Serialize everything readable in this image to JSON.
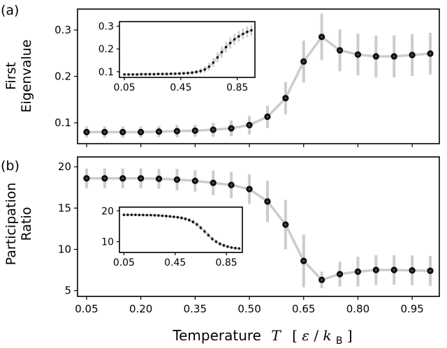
{
  "chart_data": [
    {
      "id": "top",
      "type": "line",
      "panel_tag": "(a)",
      "ylabel_lines": [
        "First",
        "Eigenvalue"
      ],
      "xlim": [
        0.025,
        1.025
      ],
      "ylim": [
        0.055,
        0.345
      ],
      "yticks": [
        0.1,
        0.2,
        0.3
      ],
      "ytick_labels": [
        "0.1",
        "0.2",
        "0.3"
      ],
      "x": [
        0.05,
        0.1,
        0.15,
        0.2,
        0.25,
        0.3,
        0.35,
        0.4,
        0.45,
        0.5,
        0.55,
        0.6,
        0.65,
        0.7,
        0.75,
        0.8,
        0.85,
        0.9,
        0.95,
        1.0
      ],
      "y": [
        0.08,
        0.08,
        0.08,
        0.08,
        0.081,
        0.082,
        0.083,
        0.085,
        0.088,
        0.095,
        0.113,
        0.153,
        0.232,
        0.285,
        0.256,
        0.247,
        0.243,
        0.243,
        0.246,
        0.249
      ],
      "yerr": [
        0.012,
        0.012,
        0.012,
        0.012,
        0.012,
        0.013,
        0.013,
        0.015,
        0.017,
        0.02,
        0.024,
        0.035,
        0.045,
        0.05,
        0.045,
        0.045,
        0.045,
        0.045,
        0.045,
        0.045
      ],
      "inset": {
        "xlim": [
          0.015,
          0.975
        ],
        "ylim": [
          0.075,
          0.32
        ],
        "xticks": [
          0.05,
          0.45,
          0.85
        ],
        "xtick_labels": [
          "0.05",
          "0.45",
          "0.85"
        ],
        "yticks": [
          0.1,
          0.2,
          0.3
        ],
        "ytick_labels": [
          "0.1",
          "0.2",
          "0.3"
        ],
        "x": [
          0.05,
          0.08,
          0.11,
          0.14,
          0.17,
          0.2,
          0.23,
          0.26,
          0.29,
          0.32,
          0.35,
          0.38,
          0.41,
          0.44,
          0.47,
          0.5,
          0.53,
          0.56,
          0.59,
          0.62,
          0.65,
          0.68,
          0.71,
          0.74,
          0.77,
          0.8,
          0.83,
          0.86,
          0.89,
          0.92,
          0.95
        ],
        "y": [
          0.088,
          0.088,
          0.088,
          0.088,
          0.089,
          0.089,
          0.089,
          0.089,
          0.09,
          0.09,
          0.09,
          0.091,
          0.091,
          0.092,
          0.093,
          0.094,
          0.096,
          0.099,
          0.103,
          0.11,
          0.122,
          0.14,
          0.163,
          0.186,
          0.208,
          0.226,
          0.242,
          0.255,
          0.266,
          0.275,
          0.282
        ],
        "yerr": [
          0.006,
          0.006,
          0.006,
          0.006,
          0.006,
          0.006,
          0.006,
          0.006,
          0.006,
          0.006,
          0.007,
          0.007,
          0.007,
          0.007,
          0.008,
          0.008,
          0.009,
          0.01,
          0.012,
          0.014,
          0.017,
          0.02,
          0.022,
          0.024,
          0.024,
          0.024,
          0.024,
          0.024,
          0.024,
          0.024,
          0.024
        ]
      }
    },
    {
      "id": "bottom",
      "type": "line",
      "panel_tag": "(b)",
      "ylabel_lines": [
        "Participation",
        "Ratio"
      ],
      "xlabel": "Temperature",
      "xlabel_symbol": "T",
      "xlabel_unit_open": "[",
      "xlabel_unit_eps": "ε",
      "xlabel_unit_slash": "/",
      "xlabel_unit_k": "k",
      "xlabel_unit_sub": "B",
      "xlabel_unit_close": "]",
      "xlim": [
        0.025,
        1.025
      ],
      "ylim": [
        4.3,
        21.2
      ],
      "xticks": [
        0.05,
        0.2,
        0.35,
        0.5,
        0.65,
        0.8,
        0.95
      ],
      "xtick_labels": [
        "0.05",
        "0.20",
        "0.35",
        "0.50",
        "0.65",
        "0.80",
        "0.95"
      ],
      "yticks": [
        5,
        10,
        15,
        20
      ],
      "ytick_labels": [
        "5",
        "10",
        "15",
        "20"
      ],
      "x": [
        0.05,
        0.1,
        0.15,
        0.2,
        0.25,
        0.3,
        0.35,
        0.4,
        0.45,
        0.5,
        0.55,
        0.6,
        0.65,
        0.7,
        0.75,
        0.8,
        0.85,
        0.9,
        0.95,
        1.0
      ],
      "y": [
        18.6,
        18.6,
        18.6,
        18.6,
        18.55,
        18.45,
        18.3,
        18.05,
        17.8,
        17.3,
        15.8,
        13.0,
        8.6,
        6.3,
        7.0,
        7.3,
        7.5,
        7.5,
        7.45,
        7.4
      ],
      "yerr": [
        1.2,
        1.2,
        1.2,
        1.2,
        1.2,
        1.3,
        1.3,
        1.5,
        1.6,
        1.8,
        2.5,
        3.0,
        3.2,
        1.0,
        1.5,
        1.8,
        1.8,
        1.8,
        1.8,
        1.8
      ],
      "inset": {
        "xlim": [
          0.015,
          0.975
        ],
        "ylim": [
          6.5,
          21.2
        ],
        "xticks": [
          0.05,
          0.45,
          0.85
        ],
        "xtick_labels": [
          "0.05",
          "0.45",
          "0.85"
        ],
        "yticks": [
          10,
          20
        ],
        "ytick_labels": [
          "10",
          "20"
        ],
        "x": [
          0.05,
          0.08,
          0.11,
          0.14,
          0.17,
          0.2,
          0.23,
          0.26,
          0.29,
          0.32,
          0.35,
          0.38,
          0.41,
          0.44,
          0.47,
          0.5,
          0.53,
          0.56,
          0.59,
          0.62,
          0.65,
          0.68,
          0.71,
          0.74,
          0.77,
          0.8,
          0.83,
          0.86,
          0.89,
          0.92,
          0.95
        ],
        "y": [
          18.7,
          18.7,
          18.7,
          18.7,
          18.65,
          18.65,
          18.6,
          18.6,
          18.55,
          18.5,
          18.4,
          18.3,
          18.2,
          18.05,
          17.9,
          17.7,
          17.4,
          17.0,
          16.4,
          15.6,
          14.5,
          13.3,
          12.1,
          10.9,
          10.0,
          9.3,
          8.8,
          8.4,
          8.1,
          7.9,
          7.8
        ],
        "yerr": [
          0.4,
          0.4,
          0.4,
          0.4,
          0.4,
          0.4,
          0.4,
          0.4,
          0.4,
          0.4,
          0.4,
          0.45,
          0.45,
          0.5,
          0.5,
          0.55,
          0.6,
          0.65,
          0.7,
          0.75,
          0.8,
          0.8,
          0.8,
          0.75,
          0.7,
          0.65,
          0.6,
          0.5,
          0.45,
          0.4,
          0.4
        ]
      }
    }
  ]
}
